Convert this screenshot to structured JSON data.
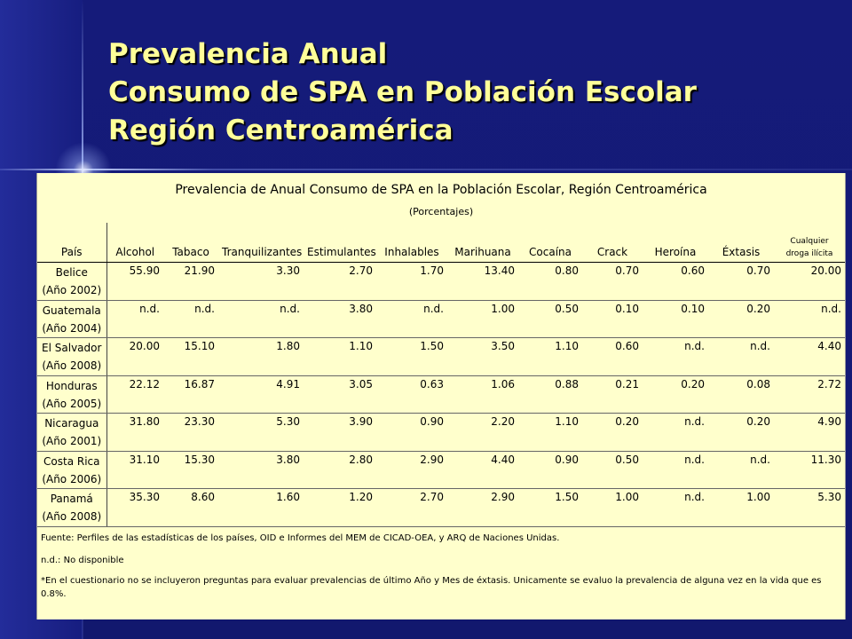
{
  "slide": {
    "title_lines": [
      "Prevalencia Anual",
      "Consumo de SPA en Población Escolar",
      "Región Centroamérica"
    ]
  },
  "table": {
    "title": "Prevalencia de Anual Consumo de SPA en la Población Escolar, Región Centroamérica",
    "subtitle": "(Porcentajes)",
    "headers": [
      "País",
      "Alcohol",
      "Tabaco",
      "Tranquilizantes",
      "Estimulantes",
      "Inhalables",
      "Marihuana",
      "Cocaína",
      "Crack",
      "Heroína",
      "Éxtasis"
    ],
    "last_header_lines": [
      "Cualquier",
      "droga ilícita"
    ],
    "rows": [
      {
        "country": "Belice",
        "year": "(Año 2002)",
        "values": [
          "55.90",
          "21.90",
          "3.30",
          "2.70",
          "1.70",
          "13.40",
          "0.80",
          "0.70",
          "0.60",
          "0.70",
          "20.00"
        ]
      },
      {
        "country": "Guatemala",
        "year": "(Año 2004)",
        "values": [
          "n.d.",
          "n.d.",
          "n.d.",
          "3.80",
          "n.d.",
          "1.00",
          "0.50",
          "0.10",
          "0.10",
          "0.20",
          "n.d."
        ]
      },
      {
        "country": "El Salvador",
        "year": "(Año 2008)",
        "values": [
          "20.00",
          "15.10",
          "1.80",
          "1.10",
          "1.50",
          "3.50",
          "1.10",
          "0.60",
          "n.d.",
          "n.d.",
          "4.40"
        ]
      },
      {
        "country": "Honduras",
        "year": "(Año 2005)",
        "values": [
          "22.12",
          "16.87",
          "4.91",
          "3.05",
          "0.63",
          "1.06",
          "0.88",
          "0.21",
          "0.20",
          "0.08",
          "2.72"
        ]
      },
      {
        "country": "Nicaragua",
        "year": "(Año 2001)",
        "values": [
          "31.80",
          "23.30",
          "5.30",
          "3.90",
          "0.90",
          "2.20",
          "1.10",
          "0.20",
          "n.d.",
          "0.20",
          "4.90"
        ]
      },
      {
        "country": "Costa Rica",
        "year": "(Año 2006)",
        "values": [
          "31.10",
          "15.30",
          "3.80",
          "2.80",
          "2.90",
          "4.40",
          "0.90",
          "0.50",
          "n.d.",
          "n.d.",
          "11.30"
        ]
      },
      {
        "country": "Panamá",
        "year": "(Año 2008)",
        "values": [
          "35.30",
          "8.60",
          "1.60",
          "1.20",
          "2.70",
          "2.90",
          "1.50",
          "1.00",
          "n.d.",
          "1.00",
          "5.30"
        ]
      }
    ],
    "notes": [
      "Fuente: Perfiles de las estadísticas de los países, OID e Informes del MEM de CICAD-OEA, y ARQ de Naciones Unidas.",
      "n.d.: No disponible",
      "*En el cuestionario no se incluyeron preguntas para evaluar prevalencias de último Año y Mes de éxtasis. Unicamente se evaluo la prevalencia de alguna vez en la vida que es 0.8%."
    ]
  }
}
